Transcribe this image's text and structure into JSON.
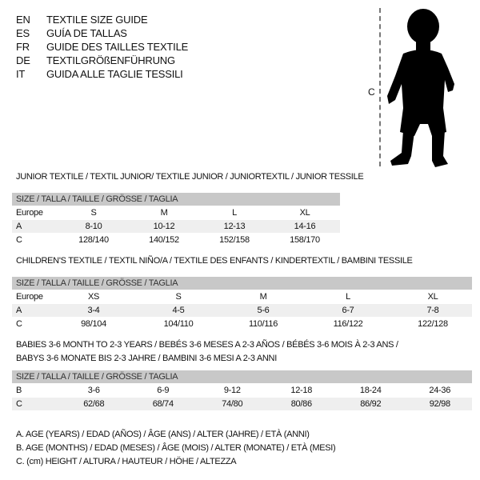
{
  "languages": [
    {
      "code": "EN",
      "title": "TEXTILE SIZE GUIDE"
    },
    {
      "code": "ES",
      "title": "GUÍA DE TALLAS"
    },
    {
      "code": "FR",
      "title": "GUIDE DES TAILLES TEXTILE"
    },
    {
      "code": "DE",
      "title": "TEXTILGRÖßENFÜHRUNG"
    },
    {
      "code": "IT",
      "title": "GUIDA ALLE TAGLIE TESSILI"
    }
  ],
  "figure": {
    "measure_label": "C",
    "icon": "baby-silhouette-icon"
  },
  "tables": [
    {
      "title": "JUNIOR TEXTILE / TEXTIL JUNIOR/ TEXTILE JUNIOR / JUNIORTEXTIL / JUNIOR TESSILE",
      "header": "SIZE / TALLA / TAILLE / GRÖSSE / TAGLIA",
      "rows": [
        {
          "label": "Europe",
          "values": [
            "S",
            "M",
            "L",
            "XL"
          ]
        },
        {
          "label": "A",
          "values": [
            "8-10",
            "10-12",
            "12-13",
            "14-16"
          ]
        },
        {
          "label": "C",
          "values": [
            "128/140",
            "140/152",
            "152/158",
            "158/170"
          ]
        }
      ]
    },
    {
      "title": "CHILDREN'S TEXTILE / TEXTIL NIÑO/A / TEXTILE DES ENFANTS / KINDERTEXTIL / BAMBINI TESSILE",
      "header": "SIZE / TALLA / TAILLE / GRÖSSE / TAGLIA",
      "rows": [
        {
          "label": "Europe",
          "values": [
            "XS",
            "S",
            "M",
            "L",
            "XL"
          ]
        },
        {
          "label": "A",
          "values": [
            "3-4",
            "4-5",
            "5-6",
            "6-7",
            "7-8"
          ]
        },
        {
          "label": "C",
          "values": [
            "98/104",
            "104/110",
            "110/116",
            "116/122",
            "122/128"
          ]
        }
      ]
    },
    {
      "title": "BABIES 3-6 MONTH TO 2-3 YEARS / BEBÉS 3-6 MESES A 2-3 AÑOS / BÉBÉS 3-6 MOIS À 2-3 ANS /",
      "title2": "BABYS 3-6 MONATE BIS 2-3 JAHRE / BAMBINI 3-6 MESI A 2-3 ANNI",
      "header": "SIZE / TALLA / TAILLE / GRÖSSE / TAGLIA",
      "rows": [
        {
          "label": "B",
          "values": [
            "3-6",
            "6-9",
            "9-12",
            "12-18",
            "18-24",
            "24-36"
          ]
        },
        {
          "label": "C",
          "values": [
            "62/68",
            "68/74",
            "74/80",
            "80/86",
            "86/92",
            "92/98"
          ]
        }
      ]
    }
  ],
  "legend": [
    "A. AGE (YEARS) / EDAD (AÑOS) / ÂGE (ANS) / ALTER (JAHRE) / ETÀ (ANNI)",
    "B. AGE (MONTHS) / EDAD (MESES) / ÂGE (MOIS) / ALTER (MONATE) / ETÀ (MESI)",
    "C. (cm) HEIGHT / ALTURA / HAUTEUR / HÖHE / ALTEZZA"
  ]
}
